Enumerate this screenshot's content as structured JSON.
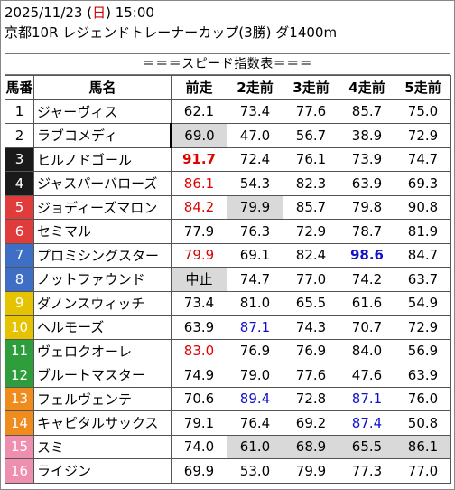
{
  "header": {
    "date_pre": "2025/11/23 (",
    "day": "日",
    "date_post": ") 15:00",
    "race": "京都10R レジェンドトレーナーカップ(3勝) ダ1400m"
  },
  "banner": "＝＝＝スピード指数表＝＝＝",
  "columns": [
    "馬番",
    "馬名",
    "前走",
    "2走前",
    "3走前",
    "4走前",
    "5走前"
  ],
  "colors": {
    "white": "#ffffff",
    "black": "#1a1a1a",
    "red": "#e03c3c",
    "blue": "#3e6fc4",
    "yellow": "#e6c300",
    "green": "#2e9e3c",
    "orange": "#f08c1e",
    "pink": "#ef8fb0",
    "gray": "#d9d9d9",
    "text_red": "#e00000",
    "text_blue": "#1111cc"
  },
  "rows": [
    {
      "no": "1",
      "name": "ジャーヴィス",
      "bg": "#ffffff",
      "fg": "#000000",
      "v": [
        "62.1",
        "73.4",
        "77.6",
        "85.7",
        "75.0"
      ],
      "style": [
        "",
        "",
        "",
        "",
        ""
      ]
    },
    {
      "no": "2",
      "name": "ラブコメディ",
      "bg": "#ffffff",
      "fg": "#000000",
      "v": [
        "69.0",
        "47.0",
        "56.7",
        "38.9",
        "72.9"
      ],
      "style": [
        "gray mark",
        "",
        "",
        "",
        ""
      ]
    },
    {
      "no": "3",
      "name": "ヒルノドゴール",
      "bg": "#1a1a1a",
      "fg": "#ffffff",
      "v": [
        "91.7",
        "72.4",
        "76.1",
        "73.9",
        "74.7"
      ],
      "style": [
        "red bold",
        "",
        "",
        "",
        ""
      ]
    },
    {
      "no": "4",
      "name": "ジャスパーバローズ",
      "bg": "#1a1a1a",
      "fg": "#ffffff",
      "v": [
        "86.1",
        "54.3",
        "82.3",
        "63.9",
        "69.3"
      ],
      "style": [
        "red",
        "",
        "",
        "",
        ""
      ]
    },
    {
      "no": "5",
      "name": "ジョディーズマロン",
      "bg": "#e03c3c",
      "fg": "#ffffff",
      "v": [
        "84.2",
        "79.9",
        "85.7",
        "79.8",
        "90.8"
      ],
      "style": [
        "red",
        "gray",
        "",
        "",
        ""
      ]
    },
    {
      "no": "6",
      "name": "セミマル",
      "bg": "#e03c3c",
      "fg": "#ffffff",
      "v": [
        "77.9",
        "76.3",
        "72.9",
        "78.7",
        "81.9"
      ],
      "style": [
        "",
        "",
        "",
        "",
        ""
      ]
    },
    {
      "no": "7",
      "name": "プロミシングスター",
      "bg": "#3e6fc4",
      "fg": "#ffffff",
      "v": [
        "79.9",
        "69.1",
        "82.4",
        "98.6",
        "84.7"
      ],
      "style": [
        "red",
        "",
        "",
        "blue bold",
        ""
      ]
    },
    {
      "no": "8",
      "name": "ノットファウンド",
      "bg": "#3e6fc4",
      "fg": "#ffffff",
      "v": [
        "中止",
        "74.7",
        "77.0",
        "74.2",
        "63.7"
      ],
      "style": [
        "gray",
        "",
        "",
        "",
        ""
      ]
    },
    {
      "no": "9",
      "name": "ダノンスウィッチ",
      "bg": "#e6c300",
      "fg": "#ffffff",
      "v": [
        "73.4",
        "81.0",
        "65.5",
        "61.6",
        "54.9"
      ],
      "style": [
        "",
        "",
        "",
        "",
        ""
      ]
    },
    {
      "no": "10",
      "name": "ヘルモーズ",
      "bg": "#e6c300",
      "fg": "#ffffff",
      "v": [
        "63.9",
        "87.1",
        "74.3",
        "70.7",
        "72.9"
      ],
      "style": [
        "",
        "blue",
        "",
        "",
        ""
      ]
    },
    {
      "no": "11",
      "name": "ヴェロクオーレ",
      "bg": "#2e9e3c",
      "fg": "#ffffff",
      "v": [
        "83.0",
        "76.9",
        "76.9",
        "84.0",
        "56.9"
      ],
      "style": [
        "red",
        "",
        "",
        "",
        ""
      ]
    },
    {
      "no": "12",
      "name": "ブルートマスター",
      "bg": "#2e9e3c",
      "fg": "#ffffff",
      "v": [
        "74.9",
        "79.0",
        "77.6",
        "47.6",
        "63.9"
      ],
      "style": [
        "",
        "",
        "",
        "",
        ""
      ]
    },
    {
      "no": "13",
      "name": "フェルヴェンテ",
      "bg": "#f08c1e",
      "fg": "#ffffff",
      "v": [
        "70.6",
        "89.4",
        "72.8",
        "87.1",
        "76.0"
      ],
      "style": [
        "",
        "blue",
        "",
        "blue",
        ""
      ]
    },
    {
      "no": "14",
      "name": "キャピタルサックス",
      "bg": "#f08c1e",
      "fg": "#ffffff",
      "v": [
        "79.1",
        "76.4",
        "69.2",
        "87.4",
        "50.8"
      ],
      "style": [
        "",
        "",
        "",
        "blue",
        ""
      ]
    },
    {
      "no": "15",
      "name": "スミ",
      "bg": "#ef8fb0",
      "fg": "#ffffff",
      "v": [
        "74.0",
        "61.0",
        "68.9",
        "65.5",
        "86.1"
      ],
      "style": [
        "",
        "gray",
        "gray",
        "gray",
        "gray"
      ]
    },
    {
      "no": "16",
      "name": "ライジン",
      "bg": "#ef8fb0",
      "fg": "#ffffff",
      "v": [
        "69.9",
        "53.0",
        "79.9",
        "77.3",
        "77.0"
      ],
      "style": [
        "",
        "",
        "",
        "",
        ""
      ]
    }
  ]
}
